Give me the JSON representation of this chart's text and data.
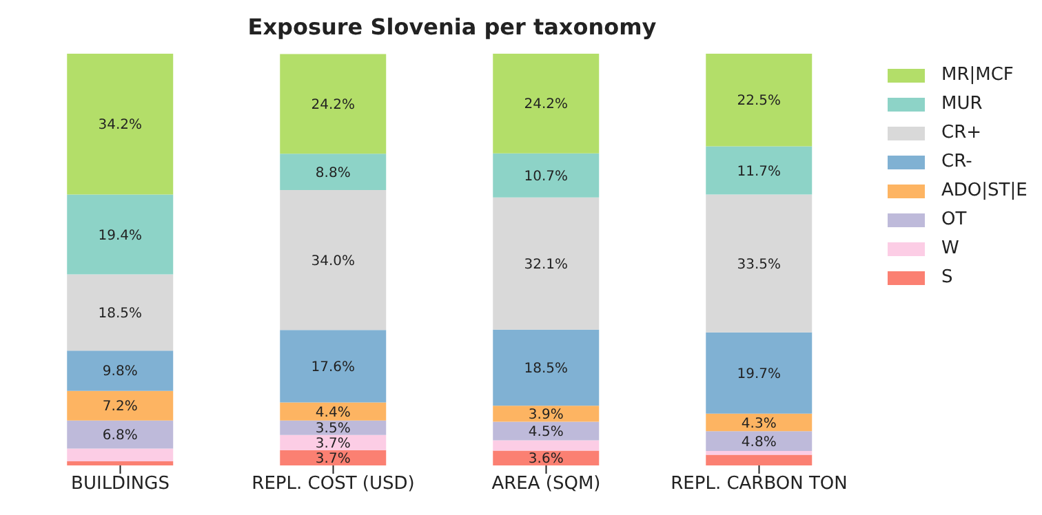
{
  "chart_data": {
    "type": "bar",
    "title": "Exposure Slovenia per taxonomy",
    "stacked": true,
    "categories": [
      "BUILDINGS",
      "REPL. COST (USD)",
      "AREA (SQM)",
      "REPL. CARBON TON"
    ],
    "ylim": [
      0,
      100
    ],
    "tick_labels": "x",
    "legend": "top right",
    "series": [
      {
        "name": "S",
        "color": "#fb8072",
        "values": [
          1.0,
          3.7,
          3.6,
          2.6
        ],
        "value_labels": [
          null,
          "3.7%",
          "3.6%",
          null
        ]
      },
      {
        "name": "W",
        "color": "#fccde5",
        "values": [
          3.1,
          3.7,
          2.5,
          0.9
        ],
        "value_labels": [
          null,
          "3.7%",
          null,
          null
        ]
      },
      {
        "name": "OT",
        "color": "#bebada",
        "values": [
          6.8,
          3.5,
          4.5,
          4.8
        ],
        "value_labels": [
          "6.8%",
          "3.5%",
          "4.5%",
          "4.8%"
        ]
      },
      {
        "name": "ADO|ST|E",
        "color": "#fdb462",
        "values": [
          7.2,
          4.4,
          3.9,
          4.3
        ],
        "value_labels": [
          "7.2%",
          "4.4%",
          "3.9%",
          "4.3%"
        ]
      },
      {
        "name": "CR-",
        "color": "#80b1d3",
        "values": [
          9.8,
          17.6,
          18.5,
          19.7
        ],
        "value_labels": [
          "9.8%",
          "17.6%",
          "18.5%",
          "19.7%"
        ]
      },
      {
        "name": "CR+",
        "color": "#d9d9d9",
        "values": [
          18.5,
          34.0,
          32.1,
          33.5
        ],
        "value_labels": [
          "18.5%",
          "34.0%",
          "32.1%",
          "33.5%"
        ]
      },
      {
        "name": "MUR",
        "color": "#8dd3c7",
        "values": [
          19.4,
          8.8,
          10.7,
          11.7
        ],
        "value_labels": [
          "19.4%",
          "8.8%",
          "10.7%",
          "11.7%"
        ]
      },
      {
        "name": "MR|MCF",
        "color": "#b3de69",
        "values": [
          34.2,
          24.2,
          24.2,
          22.5
        ],
        "value_labels": [
          "34.2%",
          "24.2%",
          "24.2%",
          "22.5%"
        ]
      }
    ]
  }
}
